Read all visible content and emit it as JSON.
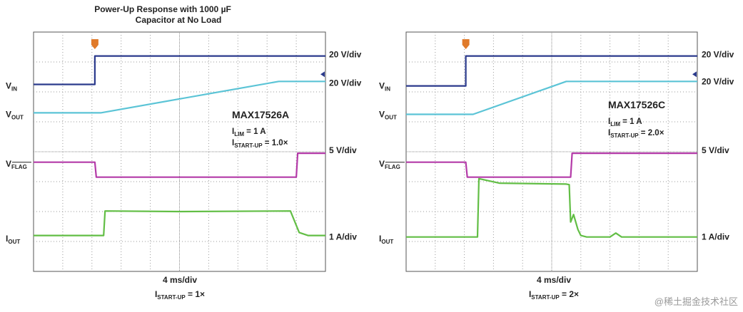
{
  "page_title_line1": "Power-Up Response with 1000 µF",
  "page_title_line2": "Capacitor at No Load",
  "watermark": "@稀土掘金技术社区",
  "colors": {
    "vin": "#2b3a8c",
    "vout": "#5bc4d6",
    "flag": "#b43aa8",
    "iout": "#62be45",
    "grid": "#9a9a9a",
    "marker": "#e07a2a"
  },
  "chart_data": [
    {
      "type": "line",
      "part": "MAX17526A",
      "ilim_label": "I",
      "ilim_sub": "LIM",
      "ilim_value": " = 1 A",
      "istart_label": "I",
      "istart_sub": "START-UP",
      "istart_value": " = 1.0×",
      "xlabel": "4 ms/div",
      "caption_main": "I",
      "caption_sub": "START-UP",
      "caption_value": " = 1×",
      "x_divs": 10,
      "y_divs": 8,
      "xlim": [
        0,
        10
      ],
      "ylim": [
        0,
        8
      ],
      "trigger_x": 2.1,
      "channel_labels": [
        {
          "name": "vin",
          "main": "V",
          "sub": "IN",
          "y": 6.2
        },
        {
          "name": "vout",
          "main": "V",
          "sub": "OUT",
          "y": 5.25
        },
        {
          "name": "flag",
          "main": "V",
          "sub": "FLAG",
          "y": 3.6
        },
        {
          "name": "iout",
          "main": "I",
          "sub": "OUT",
          "y": 1.1
        }
      ],
      "scale_labels": [
        {
          "text": "20 V/div",
          "y": 7.25
        },
        {
          "text": "20 V/div",
          "y": 6.3
        },
        {
          "text": "5 V/div",
          "y": 4.05
        },
        {
          "text": "1 A/div",
          "y": 1.15
        }
      ],
      "series": [
        {
          "name": "vin",
          "x": [
            0,
            2.1,
            2.1,
            10
          ],
          "y": [
            6.25,
            6.25,
            7.2,
            7.2
          ]
        },
        {
          "name": "vout",
          "x": [
            0,
            2.3,
            8.4,
            10
          ],
          "y": [
            5.3,
            5.3,
            6.35,
            6.35
          ]
        },
        {
          "name": "flag",
          "x": [
            0,
            2.1,
            2.15,
            9.0,
            9.05,
            10
          ],
          "y": [
            3.65,
            3.65,
            3.15,
            3.15,
            3.95,
            3.95
          ]
        },
        {
          "name": "iout",
          "x": [
            0,
            2.4,
            2.45,
            5.0,
            8.8,
            9.1,
            9.4,
            10
          ],
          "y": [
            1.2,
            1.2,
            2.02,
            2.0,
            2.02,
            1.3,
            1.2,
            1.2
          ]
        }
      ]
    },
    {
      "type": "line",
      "part": "MAX17526C",
      "ilim_label": "I",
      "ilim_sub": "LIM",
      "ilim_value": " = 1 A",
      "istart_label": "I",
      "istart_sub": "START-UP",
      "istart_value": " = 2.0×",
      "xlabel": "4 ms/div",
      "caption_main": "I",
      "caption_sub": "START-UP",
      "caption_value": " = 2×",
      "x_divs": 10,
      "y_divs": 8,
      "xlim": [
        0,
        10
      ],
      "ylim": [
        0,
        8
      ],
      "trigger_x": 2.05,
      "channel_labels": [
        {
          "name": "vin",
          "main": "V",
          "sub": "IN",
          "y": 6.2
        },
        {
          "name": "vout",
          "main": "V",
          "sub": "OUT",
          "y": 5.25
        },
        {
          "name": "flag",
          "main": "V",
          "sub": "FLAG",
          "y": 3.6
        },
        {
          "name": "iout",
          "main": "I",
          "sub": "OUT",
          "y": 1.1
        }
      ],
      "scale_labels": [
        {
          "text": "20 V/div",
          "y": 7.25
        },
        {
          "text": "20 V/div",
          "y": 6.35
        },
        {
          "text": "5 V/div",
          "y": 4.05
        },
        {
          "text": "1 A/div",
          "y": 1.15
        }
      ],
      "series": [
        {
          "name": "vin",
          "x": [
            0,
            2.05,
            2.05,
            10
          ],
          "y": [
            6.2,
            6.2,
            7.2,
            7.2
          ]
        },
        {
          "name": "vout",
          "x": [
            0,
            2.3,
            5.5,
            10
          ],
          "y": [
            5.25,
            5.25,
            6.35,
            6.35
          ]
        },
        {
          "name": "flag",
          "x": [
            0,
            2.05,
            2.1,
            5.65,
            5.7,
            10
          ],
          "y": [
            3.65,
            3.65,
            3.15,
            3.15,
            3.95,
            3.95
          ]
        },
        {
          "name": "iout",
          "x": [
            0,
            2.45,
            2.5,
            3.2,
            5.5,
            5.6,
            5.65,
            5.75,
            5.9,
            6.0,
            6.2,
            7.0,
            7.2,
            7.4,
            10
          ],
          "y": [
            1.15,
            1.15,
            3.1,
            2.95,
            2.92,
            2.9,
            1.65,
            1.9,
            1.4,
            1.2,
            1.15,
            1.15,
            1.28,
            1.15,
            1.15
          ]
        }
      ]
    }
  ]
}
